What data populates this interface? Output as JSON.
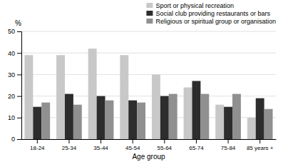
{
  "chart_data": {
    "type": "bar",
    "xlabel": "Age group",
    "ylabel": "%",
    "categories": [
      "18-24",
      "25-34",
      "35-44",
      "45-54",
      "55-64",
      "65-74",
      "75-84",
      "85 years +"
    ],
    "series": [
      {
        "name": "Sport or physical recreation",
        "color": "#c8c8c8",
        "values": [
          39,
          39,
          42,
          39,
          30,
          24,
          16,
          10
        ]
      },
      {
        "name": "Social club providing restaurants or bars",
        "color": "#2d2d2d",
        "values": [
          15,
          21,
          20,
          18,
          20,
          27,
          15,
          19
        ]
      },
      {
        "name": "Religious or spiritual group or organisation",
        "color": "#909090",
        "values": [
          17,
          16,
          18,
          17,
          21,
          21,
          21,
          14
        ]
      }
    ],
    "ylim": [
      0,
      50
    ],
    "yticks": [
      0,
      10,
      20,
      30,
      40,
      50
    ],
    "grid": true,
    "legend": "upper right"
  }
}
